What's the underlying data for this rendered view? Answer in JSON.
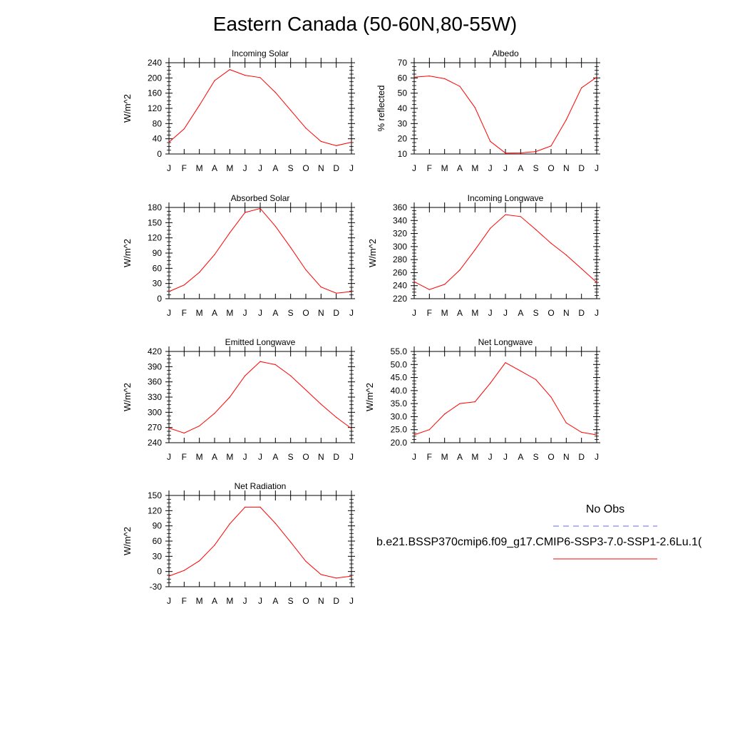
{
  "page": {
    "title": "Eastern Canada (50-60N,80-55W)"
  },
  "months": [
    "J",
    "F",
    "M",
    "A",
    "M",
    "J",
    "J",
    "A",
    "S",
    "O",
    "N",
    "D",
    "J"
  ],
  "colors": {
    "model": "#ff0000",
    "obs": "#6666ff",
    "axis": "#000000"
  },
  "legend": {
    "obs_label": "No Obs",
    "model_label": "b.e21.BSSP370cmip6.f09_g17.CMIP6-SSP3-7.0-SSP1-2.6Lu.1("
  },
  "chart_data": [
    {
      "type": "line",
      "title": "Incoming Solar",
      "ylabel": "W/m^2",
      "ylim": [
        0,
        240
      ],
      "yticks": [
        "0",
        "40",
        "80",
        "120",
        "160",
        "200",
        "240"
      ],
      "series": [
        {
          "values": [
            31,
            66,
            128,
            193,
            222,
            207,
            201,
            162,
            115,
            68,
            33,
            22,
            31
          ]
        }
      ]
    },
    {
      "type": "line",
      "title": "Albedo",
      "ylabel": "% reflected",
      "ylim": [
        10,
        70
      ],
      "yticks": [
        "10",
        "20",
        "30",
        "40",
        "50",
        "60",
        "70"
      ],
      "series": [
        {
          "values": [
            60.5,
            61.3,
            59.5,
            54.5,
            40.5,
            18.3,
            10.6,
            10.7,
            11.6,
            15.3,
            32.5,
            53.5,
            60.5
          ]
        }
      ]
    },
    {
      "type": "line",
      "title": "Absorbed Solar",
      "ylabel": "W/m^2",
      "ylim": [
        0,
        180
      ],
      "yticks": [
        "0",
        "30",
        "60",
        "90",
        "120",
        "150",
        "180"
      ],
      "series": [
        {
          "values": [
            14,
            27,
            52,
            87,
            130,
            170,
            178,
            143,
            101,
            57,
            23,
            11,
            14
          ]
        }
      ]
    },
    {
      "type": "line",
      "title": "Incoming Longwave",
      "ylabel": "W/m^2",
      "ylim": [
        220,
        360
      ],
      "yticks": [
        "220",
        "240",
        "260",
        "280",
        "300",
        "320",
        "340",
        "360"
      ],
      "series": [
        {
          "values": [
            246,
            234,
            242,
            264,
            295,
            328,
            349,
            346,
            326,
            305,
            287,
            266,
            245
          ]
        }
      ]
    },
    {
      "type": "line",
      "title": "Emitted Longwave",
      "ylabel": "W/m^2",
      "ylim": [
        240,
        420
      ],
      "yticks": [
        "240",
        "270",
        "300",
        "330",
        "360",
        "390",
        "420"
      ],
      "series": [
        {
          "values": [
            269,
            259,
            273,
            298,
            330,
            372,
            400,
            394,
            372,
            344,
            316,
            290,
            268
          ]
        }
      ]
    },
    {
      "type": "line",
      "title": "Net Longwave",
      "ylabel": "W/m^2",
      "ylim": [
        20,
        55
      ],
      "yticks": [
        "20.0",
        "25.0",
        "30.0",
        "35.0",
        "40.0",
        "45.0",
        "50.0",
        "55.0"
      ],
      "series": [
        {
          "values": [
            23.0,
            25.0,
            31.0,
            35.0,
            35.7,
            42.8,
            50.7,
            47.5,
            44.2,
            37.5,
            27.6,
            24.0,
            23.0
          ]
        }
      ]
    },
    {
      "type": "line",
      "title": "Net Radiation",
      "ylabel": "W/m^2",
      "ylim": [
        -30,
        150
      ],
      "yticks": [
        "-30",
        "0",
        "30",
        "60",
        "90",
        "120",
        "150"
      ],
      "series": [
        {
          "values": [
            -9,
            2,
            21,
            52,
            94,
            127,
            127,
            95,
            58,
            20,
            -6,
            -13,
            -9
          ]
        }
      ]
    }
  ]
}
